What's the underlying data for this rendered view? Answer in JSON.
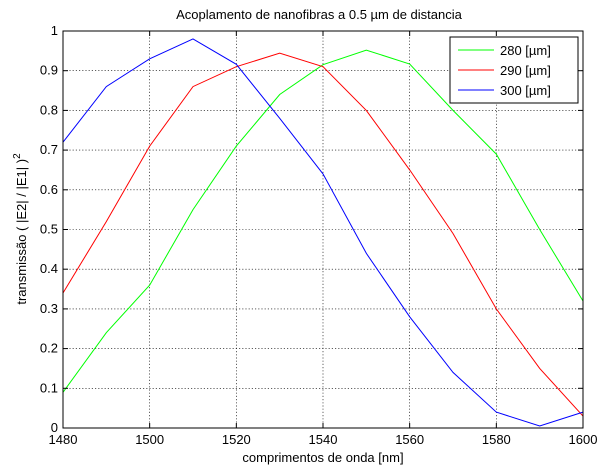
{
  "chart_data": {
    "type": "line",
    "title": "Acoplamento de nanofibras a 0.5 µm de distancia",
    "xlabel": "comprimentos de onda [nm]",
    "ylabel_main": "transmissão ( |E2| / |E1| )",
    "ylabel_sup": "2",
    "xlim": [
      1480,
      1600
    ],
    "ylim": [
      0,
      1
    ],
    "x_ticks": [
      1480,
      1500,
      1520,
      1540,
      1560,
      1580,
      1600
    ],
    "y_ticks": [
      0,
      0.1,
      0.2,
      0.3,
      0.4,
      0.5,
      0.6,
      0.7,
      0.8,
      0.9,
      1
    ],
    "x_tick_labels": [
      "1480",
      "1500",
      "1520",
      "1540",
      "1560",
      "1580",
      "1600"
    ],
    "y_tick_labels": [
      "0",
      "0.1",
      "0.2",
      "0.3",
      "0.4",
      "0.5",
      "0.6",
      "0.7",
      "0.8",
      "0.9",
      "1"
    ],
    "grid": true,
    "legend_position": "top-right",
    "x": [
      1480,
      1490,
      1500,
      1510,
      1520,
      1530,
      1540,
      1550,
      1560,
      1570,
      1580,
      1590,
      1600
    ],
    "series": [
      {
        "name": "280 [µm]",
        "color": "#00ff00",
        "values": [
          0.09,
          0.24,
          0.36,
          0.55,
          0.71,
          0.84,
          0.915,
          0.952,
          0.917,
          0.8,
          0.69,
          0.5,
          0.32
        ]
      },
      {
        "name": "290 [µm]",
        "color": "#ff0000",
        "values": [
          0.34,
          0.52,
          0.71,
          0.86,
          0.91,
          0.944,
          0.91,
          0.8,
          0.65,
          0.49,
          0.3,
          0.15,
          0.03
        ]
      },
      {
        "name": "300 [µm]",
        "color": "#0000ff",
        "values": [
          0.72,
          0.86,
          0.93,
          0.98,
          0.916,
          0.78,
          0.64,
          0.44,
          0.28,
          0.14,
          0.04,
          0.005,
          0.04
        ]
      }
    ]
  }
}
